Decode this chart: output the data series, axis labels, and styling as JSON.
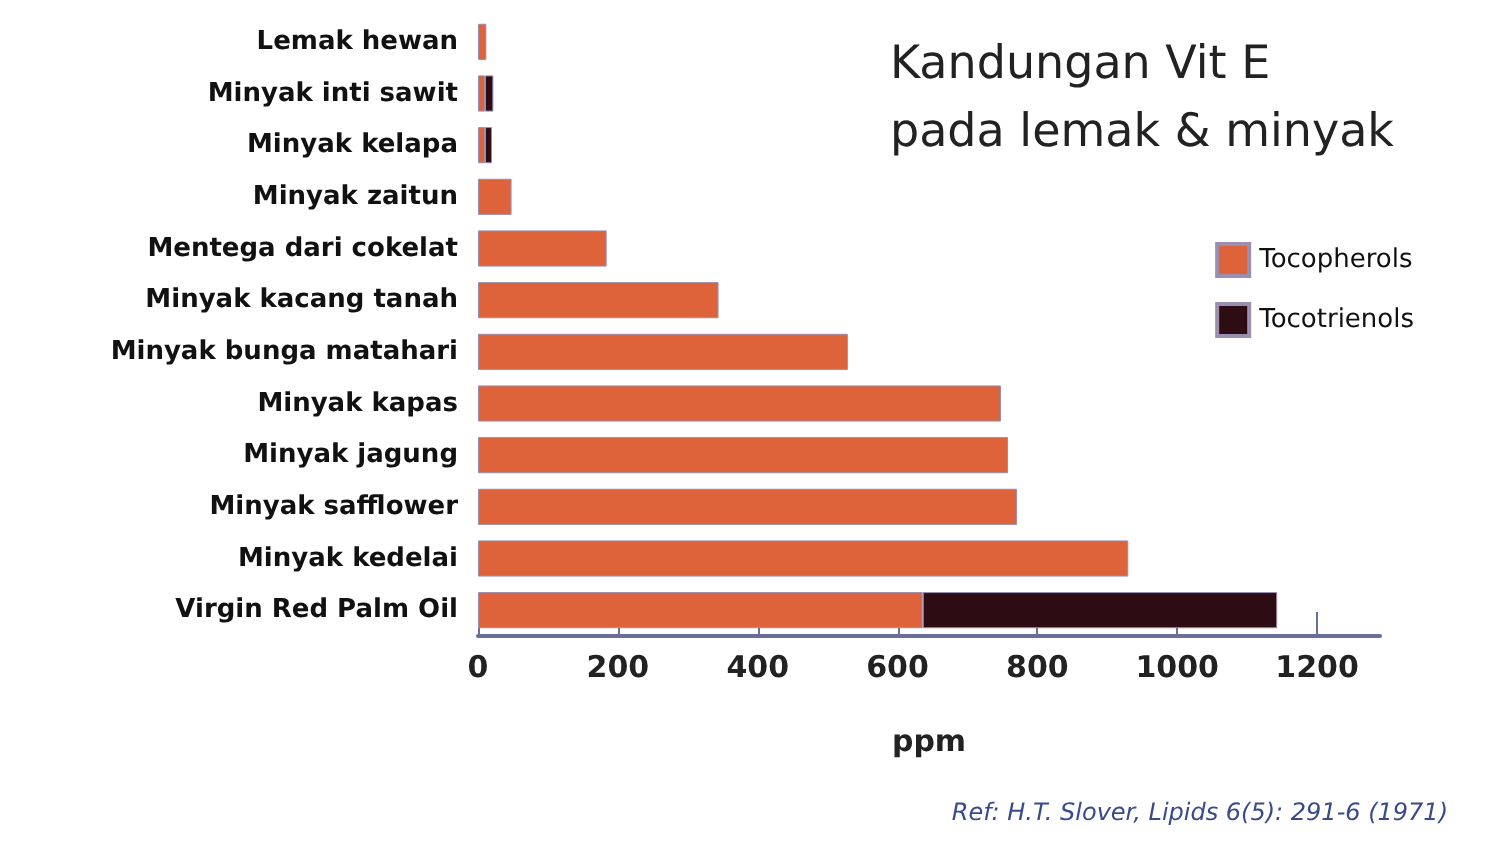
{
  "chart_data": {
    "type": "bar",
    "orientation": "horizontal",
    "stacked": true,
    "title": "Kandungan Vit E\npada lemak & minyak",
    "xlabel": "ppm",
    "categories": [
      "Lemak hewan",
      "Minyak inti sawit",
      "Minyak kelapa",
      "Minyak zaitun",
      "Mentega dari cokelat",
      "Minyak kacang tanah",
      "Minyak bunga matahari",
      "Minyak kapas",
      "Minyak jagung",
      "Minyak safflower",
      "Minyak kedelai",
      "Virgin Red Palm Oil"
    ],
    "series": [
      {
        "name": "Tocopherols",
        "color": "#de633a",
        "values": [
          12,
          10,
          10,
          48,
          184,
          344,
          529,
          748,
          758,
          771,
          930,
          636
        ]
      },
      {
        "name": "Tocotrienols",
        "color": "#2e0c14",
        "values": [
          null,
          12,
          10,
          null,
          null,
          null,
          null,
          null,
          null,
          null,
          null,
          507
        ]
      }
    ],
    "xlim": [
      0,
      1290
    ],
    "xticks": [
      0,
      200,
      400,
      600,
      800,
      1000,
      1200
    ],
    "grid": false,
    "legend": "right",
    "annotations": [
      "Ref: H.T. Slover, Lipids 6(5): 291-6 (1971)"
    ]
  }
}
